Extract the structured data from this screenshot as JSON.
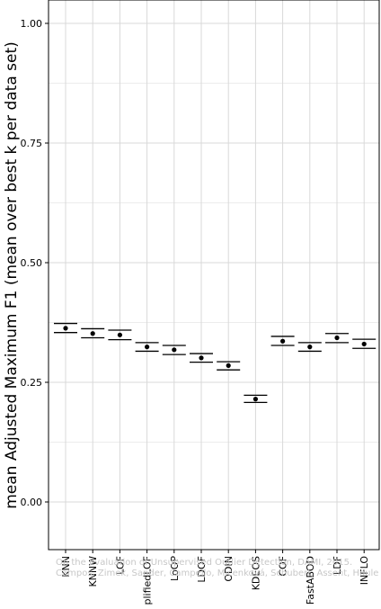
{
  "chart_data": {
    "type": "scatter",
    "title": "",
    "xlabel": "",
    "ylabel": "mean Adjusted Maximum F1 (mean over best k per data set)",
    "ylim": [
      -0.05,
      1.05
    ],
    "yticks": [
      "0.00",
      "0.25",
      "0.50",
      "0.75",
      "1.00"
    ],
    "ytick_values": [
      0,
      0.25,
      0.5,
      0.75,
      1.0
    ],
    "grid": true,
    "legend": "none",
    "categories": [
      "KNN",
      "KNNW",
      "LOF",
      "SimplifiedLOF",
      "LoOP",
      "LDOF",
      "ODIN",
      "KDEOS",
      "COF",
      "FastABOD",
      "LDF",
      "INFLO"
    ],
    "series": [
      {
        "mean": [
          0.363,
          0.352,
          0.349,
          0.324,
          0.318,
          0.301,
          0.285,
          0.215,
          0.336,
          0.324,
          0.343,
          0.33
        ],
        "upper": [
          0.373,
          0.362,
          0.359,
          0.333,
          0.327,
          0.31,
          0.293,
          0.223,
          0.346,
          0.333,
          0.352,
          0.34
        ],
        "lower": [
          0.354,
          0.343,
          0.339,
          0.315,
          0.308,
          0.292,
          0.276,
          0.208,
          0.327,
          0.315,
          0.333,
          0.321
        ]
      }
    ],
    "colors": {
      "panel_border": "#000000",
      "grid": "#d9d9d9",
      "points": "#000000",
      "error_bars": "#000000",
      "watermark": "#c8c8c8"
    }
  },
  "watermark": {
    "line1": "On the Evaluation of Unsupervised Outlier Detection, DAMI, 2015.",
    "line2": "Campos, Zimek, Sander, Campello, Micenková, Schubert, Assent, Houle"
  }
}
